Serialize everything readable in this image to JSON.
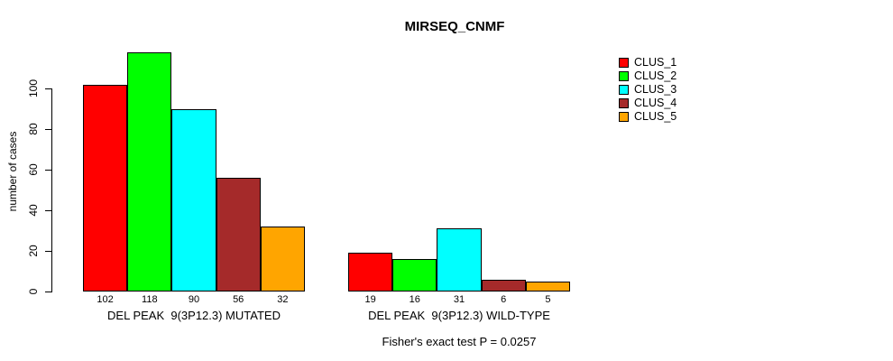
{
  "title": "MIRSEQ_CNMF",
  "footer": "Fisher's exact test P = 0.0257",
  "chart_data": {
    "type": "bar",
    "title": "MIRSEQ_CNMF",
    "xlabel": "",
    "ylabel": "number of cases",
    "ylim": [
      0,
      118
    ],
    "yticks": [
      0,
      20,
      40,
      60,
      80,
      100
    ],
    "grid": false,
    "legend_position": "right-outside",
    "bar_value_labels": true,
    "categories": [
      "DEL PEAK  9(3P12.3) MUTATED",
      "DEL PEAK  9(3P12.3) WILD-TYPE"
    ],
    "series": [
      {
        "name": "CLUS_1",
        "color": "#FF0000",
        "values": [
          102,
          19
        ]
      },
      {
        "name": "CLUS_2",
        "color": "#00FF00",
        "values": [
          118,
          16
        ]
      },
      {
        "name": "CLUS_3",
        "color": "#00FFFF",
        "values": [
          90,
          31
        ]
      },
      {
        "name": "CLUS_4",
        "color": "#A52A2A",
        "values": [
          56,
          6
        ]
      },
      {
        "name": "CLUS_5",
        "color": "#FFA500",
        "values": [
          32,
          5
        ]
      }
    ],
    "annotation": "Fisher's exact test P = 0.0257"
  }
}
